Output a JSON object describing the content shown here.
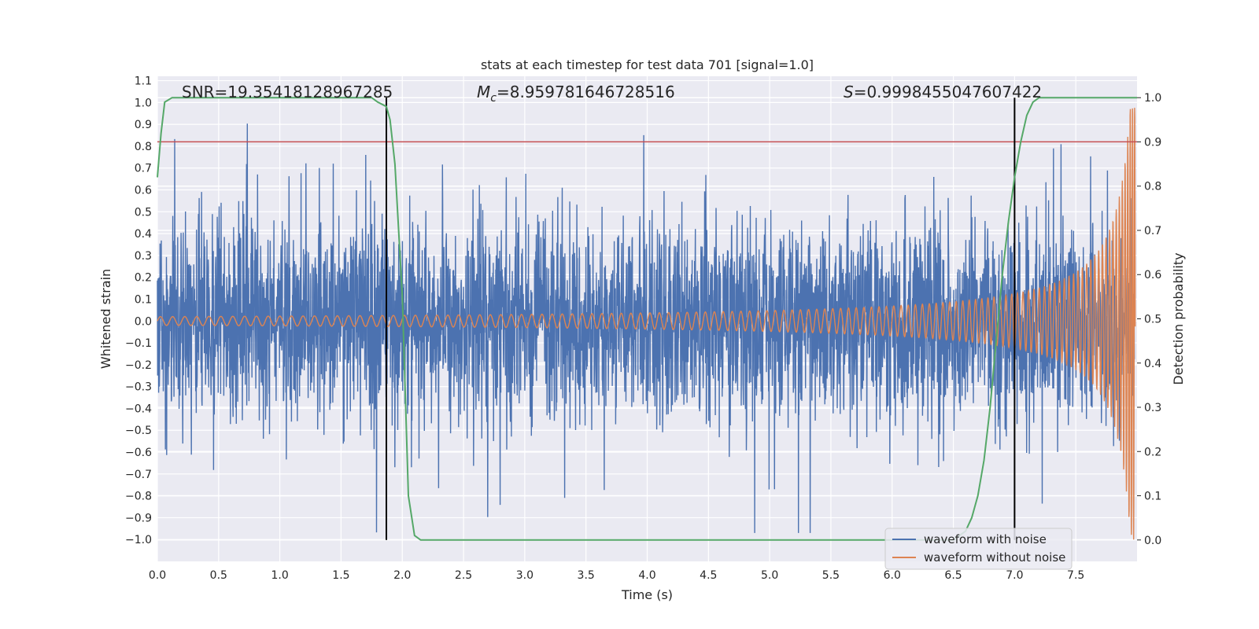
{
  "chart_data": {
    "type": "line",
    "title": "stats at each timestep for test data 701 [signal=1.0]",
    "xlabel": "Time (s)",
    "ylabel": "Whitened strain",
    "y2label": "Detection probability",
    "xlim": [
      0.0,
      8.0
    ],
    "ylim": [
      -1.1,
      1.12
    ],
    "y2lim": [
      -0.0484,
      1.0484
    ],
    "xticks": [
      0.0,
      0.5,
      1.0,
      1.5,
      2.0,
      2.5,
      3.0,
      3.5,
      4.0,
      4.5,
      5.0,
      5.5,
      6.0,
      6.5,
      7.0,
      7.5
    ],
    "xtick_labels": [
      "0.0",
      "0.5",
      "1.0",
      "1.5",
      "2.0",
      "2.5",
      "3.0",
      "3.5",
      "4.0",
      "4.5",
      "5.0",
      "5.5",
      "6.0",
      "6.5",
      "7.0",
      "7.5"
    ],
    "yticks": [
      -1.0,
      -0.9,
      -0.8,
      -0.7,
      -0.6,
      -0.5,
      -0.4,
      -0.3,
      -0.2,
      -0.1,
      0.0,
      0.1,
      0.2,
      0.3,
      0.4,
      0.5,
      0.6,
      0.7,
      0.8,
      0.9,
      1.0,
      1.1
    ],
    "ytick_labels": [
      "−1.0",
      "−0.9",
      "−0.8",
      "−0.7",
      "−0.6",
      "−0.5",
      "−0.4",
      "−0.3",
      "−0.2",
      "−0.1",
      "0.0",
      "0.1",
      "0.2",
      "0.3",
      "0.4",
      "0.5",
      "0.6",
      "0.7",
      "0.8",
      "0.9",
      "1.0",
      "1.1"
    ],
    "y2ticks": [
      0.0,
      0.1,
      0.2,
      0.3,
      0.4,
      0.5,
      0.6,
      0.7,
      0.8,
      0.9,
      1.0
    ],
    "y2tick_labels": [
      "0.0",
      "0.1",
      "0.2",
      "0.3",
      "0.4",
      "0.5",
      "0.6",
      "0.7",
      "0.8",
      "0.9",
      "1.0"
    ],
    "annotations": {
      "snr": "SNR=19.35418128967285",
      "mc_symbol": "M",
      "mc_sub": "c",
      "mc_value": "=8.959781646728516",
      "s_symbol": "S",
      "s_value": "=0.9998455047607422"
    },
    "threshold_line": {
      "y": 0.82,
      "color": "#c44e52"
    },
    "vertical_lines": [
      1.87,
      7.0
    ],
    "series": [
      {
        "name": "waveform with noise",
        "color": "#4c72b0",
        "description": "whitened strain with Gaussian noise, approx amplitude +/-0.6 with spikes to +/-0.97"
      },
      {
        "name": "waveform without noise",
        "color": "#dd8452",
        "description": "chirp signal, amplitude ~0.02 at t=0 rising to ~1.0 at t=8"
      },
      {
        "name": "detection probability",
        "axis": "right",
        "color": "#55a868",
        "x": [
          0.0,
          0.03,
          0.06,
          0.12,
          0.2,
          0.5,
          1.0,
          1.5,
          1.75,
          1.8,
          1.87,
          1.9,
          1.94,
          2.0,
          2.05,
          2.1,
          2.15,
          2.2,
          3.0,
          4.0,
          5.0,
          6.0,
          6.5,
          6.6,
          6.65,
          6.7,
          6.75,
          6.8,
          6.85,
          6.9,
          6.95,
          7.0,
          7.05,
          7.1,
          7.15,
          7.2,
          7.3,
          7.5,
          8.0
        ],
        "values": [
          0.82,
          0.92,
          0.99,
          1.0,
          1.0,
          1.0,
          1.0,
          1.0,
          1.0,
          0.99,
          0.98,
          0.95,
          0.85,
          0.55,
          0.1,
          0.01,
          0.0,
          0.0,
          0.0,
          0.0,
          0.0,
          0.0,
          0.0,
          0.02,
          0.05,
          0.1,
          0.18,
          0.3,
          0.45,
          0.6,
          0.72,
          0.82,
          0.9,
          0.96,
          0.99,
          1.0,
          1.0,
          1.0,
          1.0
        ]
      }
    ],
    "legend": {
      "position": "lower-right",
      "entries": [
        {
          "label": "waveform with noise",
          "color": "#4c72b0"
        },
        {
          "label": "waveform without noise",
          "color": "#dd8452"
        }
      ]
    },
    "colors": {
      "background": "#eaeaf2",
      "grid": "#ffffff",
      "text": "#262626",
      "vline": "#000000"
    }
  }
}
